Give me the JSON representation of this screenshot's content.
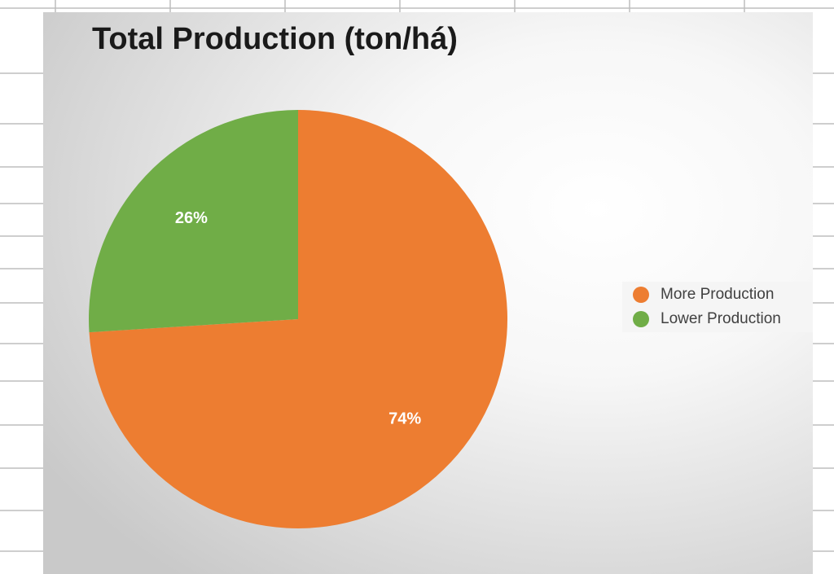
{
  "chart_data": {
    "type": "pie",
    "title": "Total Production (ton/há)",
    "categories": [
      "More Production",
      "Lower Production"
    ],
    "values": [
      74,
      26
    ],
    "value_labels": [
      "74%",
      "26%"
    ],
    "colors": [
      "#ED7D31",
      "#70AD47"
    ],
    "legend": "right"
  }
}
